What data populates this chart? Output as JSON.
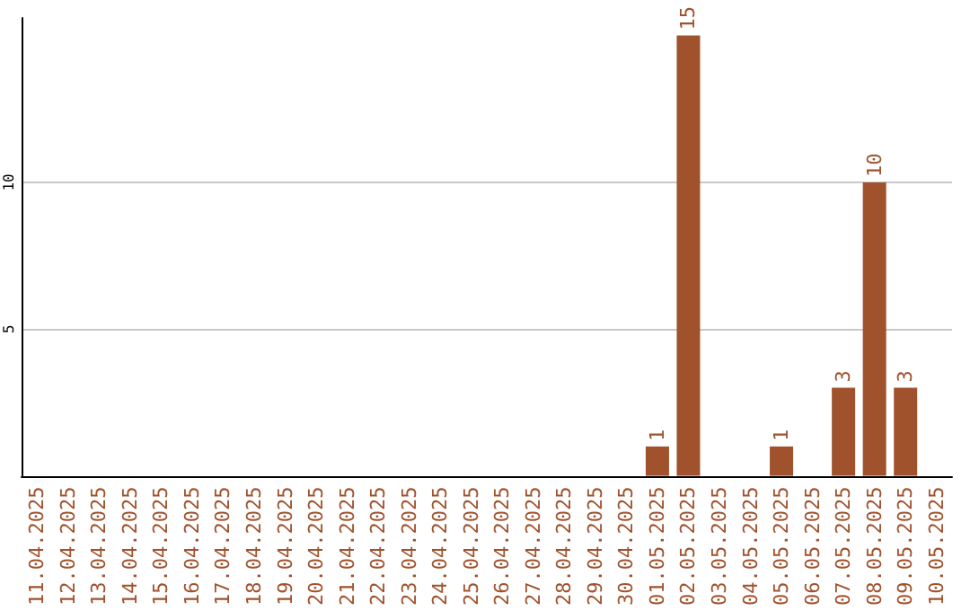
{
  "chart_data": {
    "type": "bar",
    "categories": [
      "11.04.2025",
      "12.04.2025",
      "13.04.2025",
      "14.04.2025",
      "15.04.2025",
      "16.04.2025",
      "17.04.2025",
      "18.04.2025",
      "19.04.2025",
      "20.04.2025",
      "21.04.2025",
      "22.04.2025",
      "23.04.2025",
      "24.04.2025",
      "25.04.2025",
      "26.04.2025",
      "27.04.2025",
      "28.04.2025",
      "29.04.2025",
      "30.04.2025",
      "01.05.2025",
      "02.05.2025",
      "03.05.2025",
      "04.05.2025",
      "05.05.2025",
      "06.05.2025",
      "07.05.2025",
      "08.05.2025",
      "09.05.2025",
      "10.05.2025"
    ],
    "values": [
      0,
      0,
      0,
      0,
      0,
      0,
      0,
      0,
      0,
      0,
      0,
      0,
      0,
      0,
      0,
      0,
      0,
      0,
      0,
      0,
      1,
      15,
      0,
      0,
      1,
      0,
      3,
      10,
      3,
      0
    ],
    "value_labels": [
      null,
      null,
      null,
      null,
      null,
      null,
      null,
      null,
      null,
      null,
      null,
      null,
      null,
      null,
      null,
      null,
      null,
      null,
      null,
      null,
      "1",
      "15",
      null,
      null,
      "1",
      null,
      "3",
      "10",
      "3",
      null
    ],
    "color": "#a0522d",
    "ylim": [
      0,
      15.6
    ],
    "yticks": [
      5,
      10
    ],
    "grid": "y"
  }
}
